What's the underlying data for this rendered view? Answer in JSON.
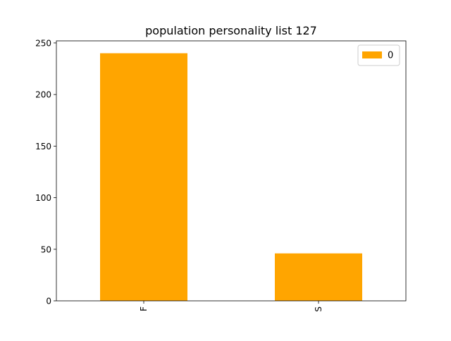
{
  "chart_data": {
    "type": "bar",
    "title": "population personality list 127",
    "xlabel": "",
    "ylabel": "",
    "categories": [
      "F",
      "S"
    ],
    "series": [
      {
        "name": "0",
        "values": [
          240,
          46
        ],
        "color": "#ffa500"
      }
    ],
    "ylim": [
      0,
      252
    ],
    "yticks": [
      0,
      50,
      100,
      150,
      200,
      250
    ],
    "x_tick_rotation_deg": 90,
    "grid": false,
    "legend_position": "top-right"
  }
}
